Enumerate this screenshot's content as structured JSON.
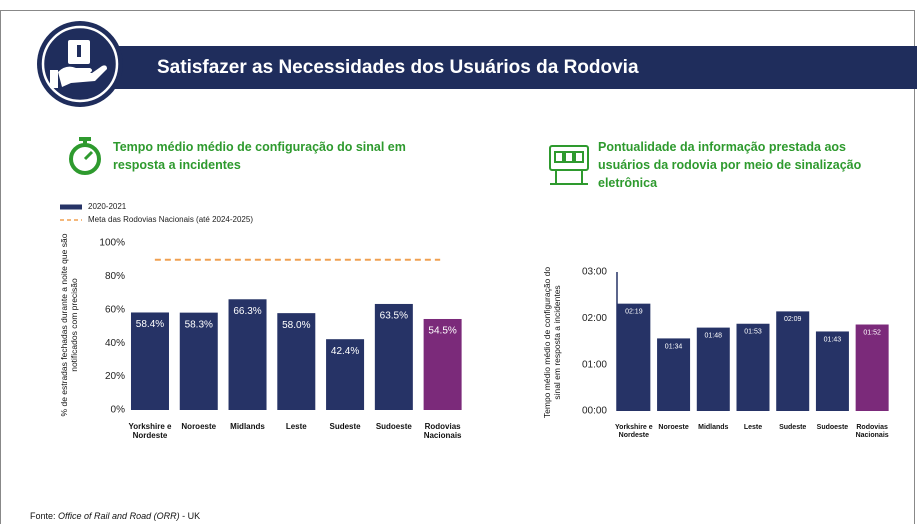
{
  "header": {
    "title": "Satisfazer as Necessidades dos Usuários da Rodovia"
  },
  "chart_data": [
    {
      "type": "bar",
      "title": "Tempo médio médio de configuração do sinal em resposta a incidentes",
      "y_label": "% de estradas fechadas durante a noite que são notificados com precisão",
      "categories": [
        "Yorkshire e Nordeste",
        "Noroeste",
        "Midlands",
        "Leste",
        "Sudeste",
        "Sudoeste",
        "Rodovias Nacionais"
      ],
      "series": [
        {
          "name": "2020-2021",
          "color": "#263366",
          "colors": [
            "#263366",
            "#263366",
            "#263366",
            "#263366",
            "#263366",
            "#263366",
            "#7b2a7a"
          ],
          "values": [
            58.4,
            58.3,
            66.3,
            58.0,
            42.4,
            63.5,
            54.5
          ],
          "value_labels": [
            "58.4%",
            "58.3%",
            "66.3%",
            "58.0%",
            "42.4%",
            "63.5%",
            "54.5%"
          ]
        }
      ],
      "target": {
        "name": "Meta das Rodovias Nacionais (até 2024-2025)",
        "value": 90,
        "color": "#f0a050"
      },
      "ylim": [
        0,
        100
      ],
      "yticks": [
        {
          "value": 0,
          "label": "0%"
        },
        {
          "value": 20,
          "label": "20%"
        },
        {
          "value": 40,
          "label": "40%"
        },
        {
          "value": 60,
          "label": "60%"
        },
        {
          "value": 80,
          "label": "80%"
        },
        {
          "value": 100,
          "label": "100%"
        }
      ]
    },
    {
      "type": "bar",
      "title": "Pontualidade da informação prestada aos usuários da rodovia por meio de sinalização eletrônica",
      "y_label": "Tempo médio médio de configuração do sinal em resposta a incidentes",
      "categories": [
        "Yorkshire e Nordeste",
        "Noroeste",
        "Midlands",
        "Leste",
        "Sudeste",
        "Sudoeste",
        "Rodovias Nacionais"
      ],
      "series": [
        {
          "color": "#263366",
          "colors": [
            "#263366",
            "#263366",
            "#263366",
            "#263366",
            "#263366",
            "#263366",
            "#7b2a7a"
          ],
          "values": [
            139,
            94,
            108,
            113,
            129,
            103,
            112
          ],
          "value_labels": [
            "02:19",
            "01:34",
            "01:48",
            "01:53",
            "02:09",
            "01:43",
            "01:52"
          ]
        }
      ],
      "ylim": [
        0,
        180
      ],
      "yticks": [
        {
          "value": 0,
          "label": "00:00"
        },
        {
          "value": 60,
          "label": "01:00"
        },
        {
          "value": 120,
          "label": "02:00"
        },
        {
          "value": 180,
          "label": "03:00"
        }
      ]
    }
  ],
  "source": {
    "label": "Fonte:",
    "name": "Office of Rail and Road (ORR)",
    "suffix": "- UK"
  }
}
